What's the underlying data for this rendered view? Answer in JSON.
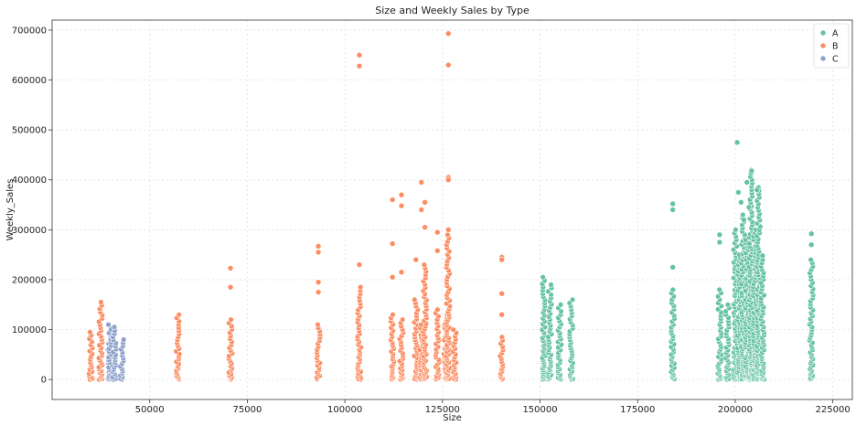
{
  "chart_data": {
    "type": "scatter",
    "title": "Size and Weekly Sales by Type",
    "xlabel": "Size",
    "ylabel": "Weekly_Sales",
    "xlim": [
      25000,
      230000
    ],
    "ylim": [
      -40000,
      720000
    ],
    "xticks": [
      50000,
      75000,
      100000,
      125000,
      150000,
      175000,
      200000,
      225000
    ],
    "yticks": [
      0,
      100000,
      200000,
      300000,
      400000,
      500000,
      600000,
      700000
    ],
    "grid": true,
    "legend_position": "top-right",
    "series": [
      {
        "name": "A",
        "color": "#66c2a5",
        "columns": [
          {
            "x": 151000,
            "max": 205000
          },
          {
            "x": 152500,
            "max": 190000
          },
          {
            "x": 155000,
            "max": 150000
          },
          {
            "x": 158000,
            "max": 160000
          },
          {
            "x": 184000,
            "max": 180000
          },
          {
            "x": 196000,
            "max": 180000
          },
          {
            "x": 198000,
            "max": 150000
          },
          {
            "x": 200000,
            "max": 300000
          },
          {
            "x": 201000,
            "max": 250000
          },
          {
            "x": 202000,
            "max": 330000
          },
          {
            "x": 203000,
            "max": 280000
          },
          {
            "x": 204000,
            "max": 420000
          },
          {
            "x": 205000,
            "max": 300000
          },
          {
            "x": 206000,
            "max": 385000
          },
          {
            "x": 207000,
            "max": 240000
          },
          {
            "x": 219500,
            "max": 240000
          }
        ],
        "outliers": [
          {
            "x": 184000,
            "y": 352000
          },
          {
            "x": 184000,
            "y": 340000
          },
          {
            "x": 184000,
            "y": 225000
          },
          {
            "x": 196000,
            "y": 290000
          },
          {
            "x": 196000,
            "y": 275000
          },
          {
            "x": 200500,
            "y": 475000
          },
          {
            "x": 200800,
            "y": 375000
          },
          {
            "x": 201500,
            "y": 355000
          },
          {
            "x": 202200,
            "y": 320000
          },
          {
            "x": 203000,
            "y": 395000
          },
          {
            "x": 203500,
            "y": 345000
          },
          {
            "x": 204200,
            "y": 418000
          },
          {
            "x": 205600,
            "y": 380000
          },
          {
            "x": 207000,
            "y": 248000
          },
          {
            "x": 219500,
            "y": 292000
          },
          {
            "x": 219500,
            "y": 270000
          }
        ]
      },
      {
        "name": "B",
        "color": "#fc8d62",
        "columns": [
          {
            "x": 34900,
            "max": 95000
          },
          {
            "x": 37400,
            "max": 155000
          },
          {
            "x": 57200,
            "max": 130000
          },
          {
            "x": 70700,
            "max": 120000
          },
          {
            "x": 93200,
            "max": 110000
          },
          {
            "x": 103700,
            "max": 185000
          },
          {
            "x": 112200,
            "max": 130000
          },
          {
            "x": 114500,
            "max": 120000
          },
          {
            "x": 118200,
            "max": 160000
          },
          {
            "x": 119600,
            "max": 110000
          },
          {
            "x": 120500,
            "max": 230000
          },
          {
            "x": 123700,
            "max": 140000
          },
          {
            "x": 125800,
            "max": 130000
          },
          {
            "x": 126500,
            "max": 290000
          },
          {
            "x": 128100,
            "max": 100000
          },
          {
            "x": 140200,
            "max": 85000
          }
        ],
        "outliers": [
          {
            "x": 70700,
            "y": 223000
          },
          {
            "x": 70700,
            "y": 185000
          },
          {
            "x": 93200,
            "y": 267000
          },
          {
            "x": 93200,
            "y": 255000
          },
          {
            "x": 93200,
            "y": 195000
          },
          {
            "x": 93200,
            "y": 175000
          },
          {
            "x": 103700,
            "y": 650000
          },
          {
            "x": 103700,
            "y": 628000
          },
          {
            "x": 103700,
            "y": 230000
          },
          {
            "x": 112200,
            "y": 360000
          },
          {
            "x": 112200,
            "y": 272000
          },
          {
            "x": 112200,
            "y": 205000
          },
          {
            "x": 114500,
            "y": 370000
          },
          {
            "x": 114500,
            "y": 348000
          },
          {
            "x": 114500,
            "y": 215000
          },
          {
            "x": 118200,
            "y": 240000
          },
          {
            "x": 119600,
            "y": 395000
          },
          {
            "x": 119600,
            "y": 340000
          },
          {
            "x": 120500,
            "y": 355000
          },
          {
            "x": 120500,
            "y": 305000
          },
          {
            "x": 123700,
            "y": 295000
          },
          {
            "x": 123700,
            "y": 258000
          },
          {
            "x": 126500,
            "y": 693000
          },
          {
            "x": 126500,
            "y": 630000
          },
          {
            "x": 126500,
            "y": 405000
          },
          {
            "x": 126500,
            "y": 400000
          },
          {
            "x": 126500,
            "y": 300000
          },
          {
            "x": 140200,
            "y": 245000
          },
          {
            "x": 140200,
            "y": 240000
          },
          {
            "x": 140200,
            "y": 172000
          },
          {
            "x": 140200,
            "y": 130000
          }
        ]
      },
      {
        "name": "C",
        "color": "#8da0cb",
        "columns": [
          {
            "x": 39700,
            "max": 110000
          },
          {
            "x": 39900,
            "max": 100000
          },
          {
            "x": 41000,
            "max": 105000
          },
          {
            "x": 42900,
            "max": 80000
          }
        ],
        "outliers": []
      }
    ]
  }
}
